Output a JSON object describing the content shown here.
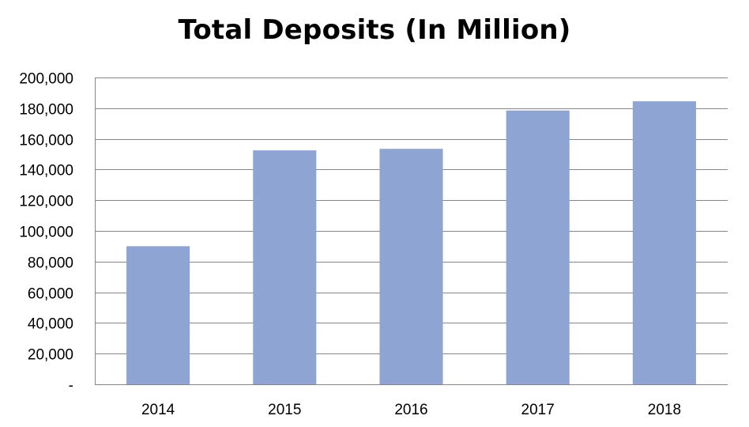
{
  "chart_data": {
    "type": "bar",
    "title": "Total Deposits (In Million)",
    "xlabel": "",
    "ylabel": "",
    "categories": [
      "2014",
      "2015",
      "2016",
      "2017",
      "2018"
    ],
    "values": [
      90000,
      152500,
      153500,
      178500,
      184500
    ],
    "ylim": [
      0,
      200000
    ],
    "yticks": [
      0,
      20000,
      40000,
      60000,
      80000,
      100000,
      120000,
      140000,
      160000,
      180000,
      200000
    ],
    "ytick_labels": [
      "-",
      "20,000",
      "40,000",
      "60,000",
      "80,000",
      "100,000",
      "120,000",
      "140,000",
      "160,000",
      "180,000",
      "200,000"
    ],
    "grid": true,
    "legend": "none",
    "bar_color": "#8EA4D3",
    "grid_color": "#868686"
  }
}
